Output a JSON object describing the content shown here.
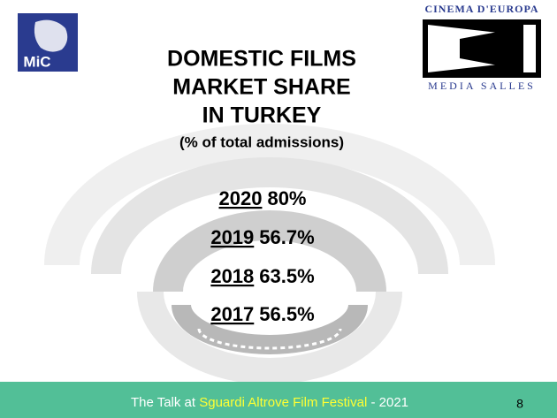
{
  "logos": {
    "left": "MiC",
    "right_top": "CINEMA D'EUROPA",
    "right_bottom": "MEDIA SALLES"
  },
  "title": {
    "lines": [
      "DOMESTIC FILMS",
      "MARKET SHARE",
      "IN TURKEY"
    ],
    "subtitle": "(% of total admissions)"
  },
  "items": [
    {
      "year": "2020",
      "share": "80%"
    },
    {
      "year": "2019",
      "share": "56.7%"
    },
    {
      "year": "2018",
      "share": "63.5%"
    },
    {
      "year": "2017",
      "share": "56.5%"
    }
  ],
  "footer": {
    "prefix": "The Talk at",
    "event": "Sguardi Altrove Film Festival",
    "suffix": "- 2021",
    "page": "8"
  }
}
